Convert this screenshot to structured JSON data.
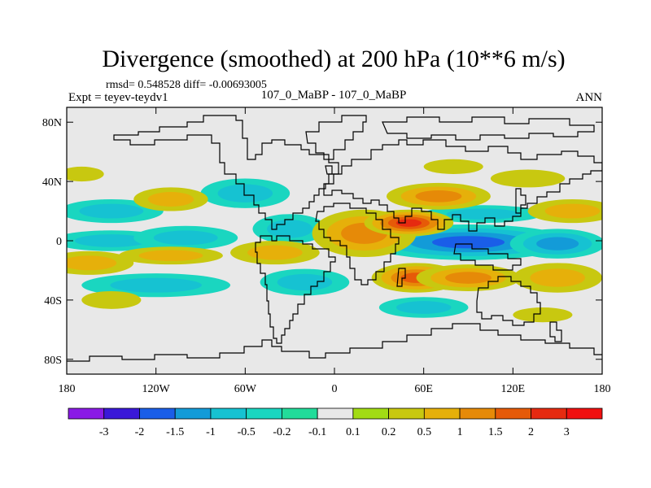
{
  "title": "Divergence (smoothed) at 200 hPa (10**6 m/s)",
  "stats": "rmsd= 0.548528 diff= -0.00693005",
  "experiment": "Expt = teyev-teydv1",
  "period": "107_0_MaBP - 107_0_MaBP",
  "season": "ANN",
  "colors": {
    "background_zero": "#e8e8e8",
    "coastline": "#000000"
  },
  "map_data": {
    "type": "filled-contour-map",
    "projection": "cylindrical-equidistant",
    "lon_range": [
      -180,
      180
    ],
    "lat_range": [
      -90,
      90
    ],
    "x_ticks": [
      {
        "lon": -180,
        "label": "180"
      },
      {
        "lon": -120,
        "label": "120W"
      },
      {
        "lon": -60,
        "label": "60W"
      },
      {
        "lon": 0,
        "label": "0"
      },
      {
        "lon": 60,
        "label": "60E"
      },
      {
        "lon": 120,
        "label": "120E"
      },
      {
        "lon": 180,
        "label": "180"
      }
    ],
    "y_ticks": [
      {
        "lat": 80,
        "label": "80N"
      },
      {
        "lat": 40,
        "label": "40N"
      },
      {
        "lat": 0,
        "label": "0"
      },
      {
        "lat": -40,
        "label": "40S"
      },
      {
        "lat": -80,
        "label": "80S"
      }
    ],
    "levels": [
      "-3",
      "-2",
      "-1.5",
      "-1",
      "-0.5",
      "-0.2",
      "-0.1",
      "0.1",
      "0.2",
      "0.5",
      "1",
      "1.5",
      "2",
      "3"
    ],
    "colorbar": [
      "#8a1ae6",
      "#3a18d8",
      "#1a5ee8",
      "#139bd8",
      "#16c2d2",
      "#1ad6c0",
      "#22dc9a",
      "#e8e8e8",
      "#a2dc14",
      "#c8c810",
      "#e6b00a",
      "#e68a08",
      "#e65a08",
      "#e62a10",
      "#f01010"
    ],
    "features": [
      {
        "name": "eastern-indian-ocean-convergence",
        "lon": 100,
        "lat": 0,
        "rlon": 45,
        "rlat": 7,
        "level": -3
      },
      {
        "name": "equatorial-indian-convergence",
        "lon": 90,
        "lat": -1,
        "rlon": 70,
        "rlat": 12,
        "level": -1.5
      },
      {
        "name": "tropical-pacific-convergence",
        "lon": 150,
        "lat": -2,
        "rlon": 32,
        "rlat": 10,
        "level": -1
      },
      {
        "name": "central-pacific-convergence",
        "lon": -150,
        "lat": 0,
        "rlon": 40,
        "rlat": 7,
        "level": -0.5
      },
      {
        "name": "eastern-pacific-convergence",
        "lon": -100,
        "lat": 2,
        "rlon": 35,
        "rlat": 8,
        "level": -0.5
      },
      {
        "name": "atlantic-convergence",
        "lon": -30,
        "lat": 8,
        "rlon": 25,
        "rlat": 10,
        "level": -0.5
      },
      {
        "name": "south-atlantic-convergence",
        "lon": -20,
        "lat": -28,
        "rlon": 30,
        "rlat": 9,
        "level": -0.5
      },
      {
        "name": "south-pacific-convergence",
        "lon": -120,
        "lat": -30,
        "rlon": 50,
        "rlat": 8,
        "level": -0.5
      },
      {
        "name": "north-pacific-convergence",
        "lon": -150,
        "lat": 20,
        "rlon": 35,
        "rlat": 8,
        "level": -0.5
      },
      {
        "name": "north-atlantic-convergence",
        "lon": -60,
        "lat": 32,
        "rlon": 30,
        "rlat": 10,
        "level": -0.5
      },
      {
        "name": "southern-ocean-convergence",
        "lon": 60,
        "lat": -45,
        "rlon": 30,
        "rlat": 7,
        "level": -0.5
      },
      {
        "name": "north-indian-convergence",
        "lon": 100,
        "lat": 18,
        "rlon": 40,
        "rlat": 6,
        "level": -0.5
      },
      {
        "name": "african-divergence",
        "lon": 20,
        "lat": 5,
        "rlon": 35,
        "rlat": 16,
        "level": 1
      },
      {
        "name": "arabian-divergence",
        "lon": 50,
        "lat": 12,
        "rlon": 30,
        "rlat": 9,
        "level": 2
      },
      {
        "name": "south-african-divergence",
        "lon": 55,
        "lat": -25,
        "rlon": 30,
        "rlat": 10,
        "level": 1.5
      },
      {
        "name": "south-indian-divergence",
        "lon": 90,
        "lat": -25,
        "rlon": 35,
        "rlat": 9,
        "level": 1
      },
      {
        "name": "asian-divergence",
        "lon": 70,
        "lat": 30,
        "rlon": 35,
        "rlat": 9,
        "level": 1
      },
      {
        "name": "south-pacific-divergence",
        "lon": 150,
        "lat": -25,
        "rlon": 30,
        "rlat": 10,
        "level": 0.5
      },
      {
        "name": "north-pacific-divergence",
        "lon": 160,
        "lat": 20,
        "rlon": 30,
        "rlat": 8,
        "level": 0.5
      },
      {
        "name": "dateline-divergence",
        "lon": -165,
        "lat": -15,
        "rlon": 30,
        "rlat": 8,
        "level": 0.5
      },
      {
        "name": "eastern-tropical-divergence",
        "lon": -110,
        "lat": -10,
        "rlon": 35,
        "rlat": 6,
        "level": 0.5
      },
      {
        "name": "atlantic-divergence",
        "lon": -40,
        "lat": -8,
        "rlon": 30,
        "rlat": 8,
        "level": 0.5
      },
      {
        "name": "north-america-divergence",
        "lon": -110,
        "lat": 28,
        "rlon": 25,
        "rlat": 8,
        "level": 0.5
      },
      {
        "name": "southern-pacific-divergence",
        "lon": -150,
        "lat": -40,
        "rlon": 20,
        "rlat": 6,
        "level": 0.2
      },
      {
        "name": "southern-indian-divergence",
        "lon": 140,
        "lat": -50,
        "rlon": 20,
        "rlat": 5,
        "level": 0.2
      },
      {
        "name": "north-pacific-high-divergence",
        "lon": -170,
        "lat": 45,
        "rlon": 15,
        "rlat": 5,
        "level": 0.2
      },
      {
        "name": "siberian-divergence",
        "lon": 80,
        "lat": 50,
        "rlon": 20,
        "rlat": 5,
        "level": 0.2
      },
      {
        "name": "eurasia-divergence",
        "lon": 130,
        "lat": 42,
        "rlon": 25,
        "rlat": 6,
        "level": 0.2
      }
    ]
  }
}
